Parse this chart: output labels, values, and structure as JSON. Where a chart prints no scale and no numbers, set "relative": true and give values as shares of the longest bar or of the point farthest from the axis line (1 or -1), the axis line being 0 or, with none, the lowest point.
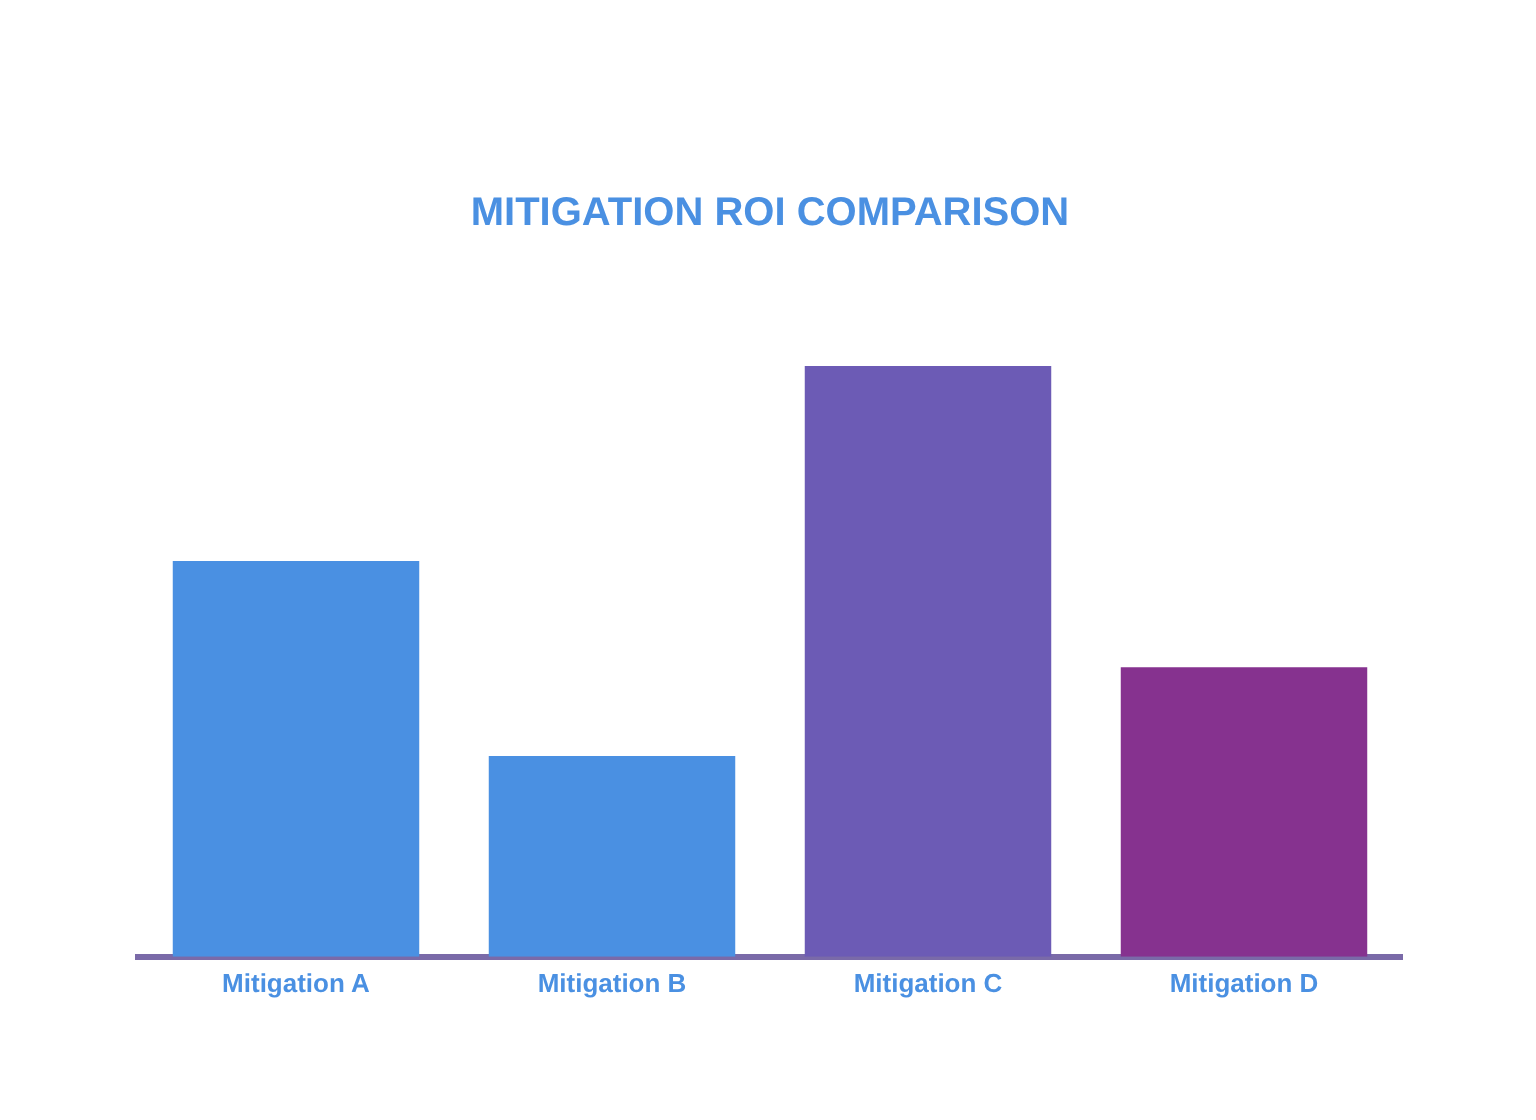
{
  "chart_data": {
    "type": "bar",
    "title": "MITIGATION ROI COMPARISON",
    "categories": [
      "Mitigation A",
      "Mitigation B",
      "Mitigation C",
      "Mitigation D"
    ],
    "values": [
      0.67,
      0.34,
      1,
      0.49
    ],
    "colors": [
      "#4a90e2",
      "#4a90e2",
      "#6c5bb5",
      "#86328f"
    ],
    "relative": true
  }
}
